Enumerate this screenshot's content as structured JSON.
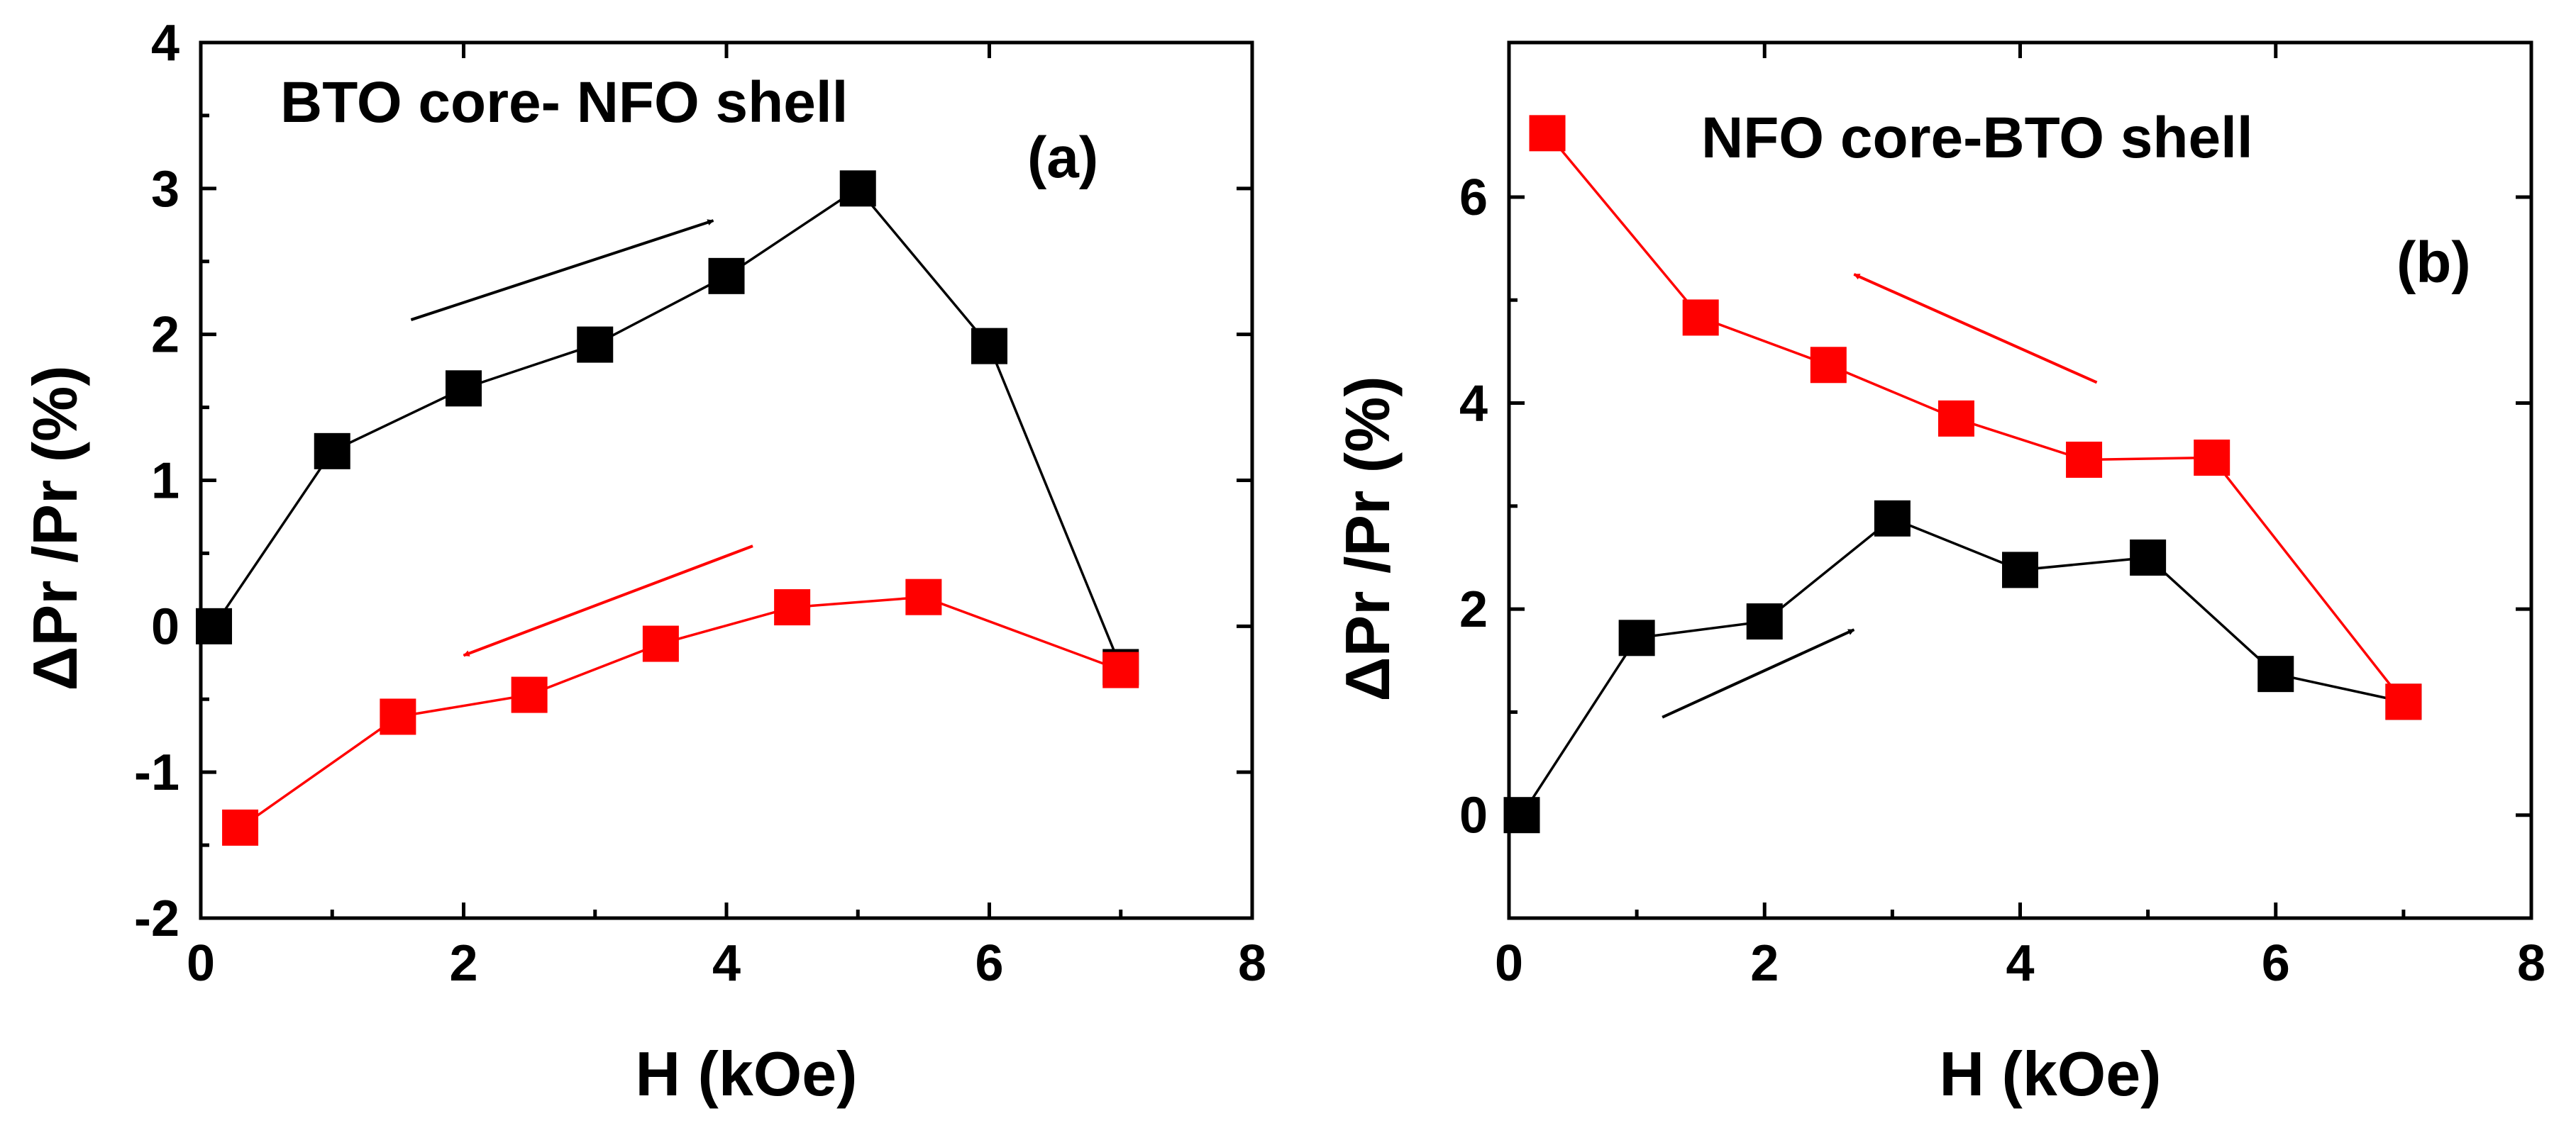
{
  "chart_data": [
    {
      "type": "line",
      "panel": "(a)",
      "title": "BTO core- NFO shell",
      "panel_label": "(a)",
      "xlabel": "H (kOe)",
      "ylabel": "ΔPr /Pr (%)",
      "xlim": [
        0,
        8
      ],
      "ylim": [
        -2,
        4
      ],
      "xticks": [
        0,
        2,
        4,
        6,
        8
      ],
      "yticks": [
        -2,
        -1,
        0,
        1,
        2,
        3,
        4
      ],
      "series": [
        {
          "color": "#000000",
          "marker": "square",
          "x": [
            0.1,
            1,
            2,
            3,
            4,
            5,
            6,
            7
          ],
          "y": [
            0.0,
            1.2,
            1.63,
            1.93,
            2.4,
            3.0,
            1.92,
            -0.28
          ]
        },
        {
          "color": "#ff0000",
          "marker": "square",
          "x": [
            0.3,
            1.5,
            2.5,
            3.5,
            4.5,
            5.5,
            7
          ],
          "y": [
            -1.38,
            -0.62,
            -0.47,
            -0.12,
            0.13,
            0.2,
            -0.3
          ]
        }
      ],
      "arrows": [
        {
          "color": "#000000",
          "from": [
            1.6,
            2.1
          ],
          "to": [
            3.9,
            2.78
          ]
        },
        {
          "color": "#ff0000",
          "from": [
            4.2,
            0.55
          ],
          "to": [
            2.0,
            -0.2
          ]
        }
      ]
    },
    {
      "type": "line",
      "panel": "(b)",
      "title": "NFO core-BTO shell",
      "panel_label": "(b)",
      "xlabel": "H (kOe)",
      "ylabel": "ΔPr /Pr (%)",
      "xlim": [
        0,
        8
      ],
      "ylim": [
        -1,
        7.5
      ],
      "xticks": [
        0,
        2,
        4,
        6,
        8
      ],
      "yticks": [
        0,
        2,
        4,
        6
      ],
      "series": [
        {
          "color": "#000000",
          "marker": "square",
          "x": [
            0.1,
            1,
            2,
            3,
            4,
            5,
            6,
            7
          ],
          "y": [
            0.0,
            1.72,
            1.88,
            2.88,
            2.38,
            2.5,
            1.37,
            1.1
          ]
        },
        {
          "color": "#ff0000",
          "marker": "square",
          "x": [
            0.3,
            1.5,
            2.5,
            3.5,
            4.5,
            5.5,
            7
          ],
          "y": [
            6.62,
            4.83,
            4.37,
            3.85,
            3.45,
            3.47,
            1.1
          ]
        }
      ],
      "arrows": [
        {
          "color": "#000000",
          "from": [
            1.2,
            0.95
          ],
          "to": [
            2.7,
            1.8
          ]
        },
        {
          "color": "#ff0000",
          "from": [
            4.6,
            4.2
          ],
          "to": [
            2.7,
            5.25
          ]
        }
      ]
    }
  ]
}
